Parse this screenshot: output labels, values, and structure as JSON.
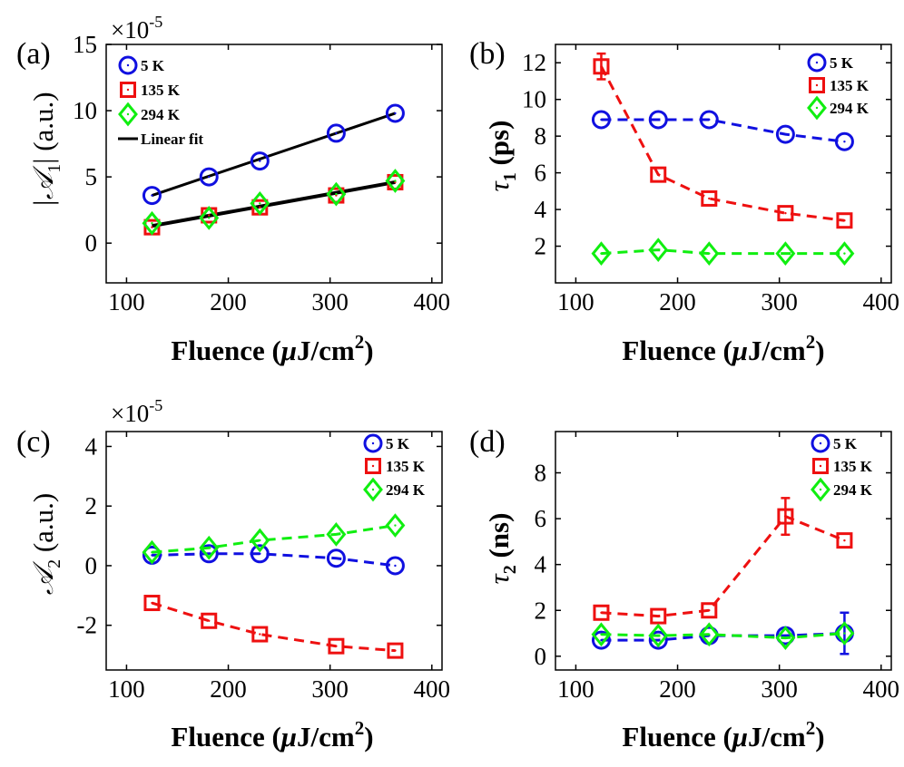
{
  "figure": {
    "x_label_main": "Fluence (",
    "x_label_mu": "μ",
    "x_label_unit": "J/cm",
    "x_label_sup": "2",
    "x_label_close": ")"
  },
  "colors": {
    "5K": "#1010e0",
    "135K": "#ee1010",
    "294K": "#10ee10",
    "fit": "#000000"
  },
  "chart_data": [
    {
      "id": "a",
      "type": "scatter",
      "panel_label": "(a)",
      "ylabel_main": "|𝒜",
      "ylabel_sub": "1",
      "ylabel_rest": "| (a.u.)",
      "multiplier": "×10",
      "multiplier_exp": "-5",
      "xlim": [
        80,
        410
      ],
      "ylim": [
        -3,
        15
      ],
      "xticks": [
        "100",
        "200",
        "300",
        "400"
      ],
      "xtick_values": [
        100,
        200,
        300,
        400
      ],
      "yticks": [
        "0",
        "5",
        "10",
        "15"
      ],
      "ytick_values": [
        0,
        5,
        10,
        15
      ],
      "legend": [
        "5 K",
        "135 K",
        "294 K",
        "Linear fit"
      ],
      "series": [
        {
          "name": "5 K",
          "marker": "circle",
          "x": [
            125,
            181,
            231,
            306,
            364
          ],
          "y": [
            3.6,
            5.0,
            6.2,
            8.3,
            9.8
          ]
        },
        {
          "name": "135 K",
          "marker": "square",
          "x": [
            125,
            181,
            231,
            306,
            364
          ],
          "y": [
            1.2,
            2.1,
            2.7,
            3.6,
            4.6
          ]
        },
        {
          "name": "294 K",
          "marker": "diamond",
          "x": [
            125,
            181,
            231,
            306,
            364
          ],
          "y": [
            1.5,
            1.9,
            3.0,
            3.7,
            4.7
          ]
        }
      ],
      "fits": [
        {
          "name": "Linear fit",
          "x": [
            125,
            364
          ],
          "y": [
            3.6,
            9.8
          ],
          "width": 3
        },
        {
          "name": "Linear fit",
          "x": [
            125,
            364
          ],
          "y": [
            1.3,
            4.6
          ],
          "width": 4
        }
      ]
    },
    {
      "id": "b",
      "type": "line",
      "panel_label": "(b)",
      "ylabel_main": "τ",
      "ylabel_sub": "1",
      "ylabel_rest": " (ps)",
      "xlim": [
        80,
        410
      ],
      "ylim": [
        0,
        13
      ],
      "xticks": [
        "100",
        "200",
        "300",
        "400"
      ],
      "xtick_values": [
        100,
        200,
        300,
        400
      ],
      "yticks": [
        "2",
        "4",
        "6",
        "8",
        "10",
        "12"
      ],
      "ytick_values": [
        2,
        4,
        6,
        8,
        10,
        12
      ],
      "legend": [
        "5 K",
        "135 K",
        "294 K"
      ],
      "series": [
        {
          "name": "5 K",
          "marker": "circle",
          "x": [
            125,
            181,
            231,
            306,
            364
          ],
          "y": [
            8.9,
            8.9,
            8.9,
            8.1,
            7.7
          ]
        },
        {
          "name": "135 K",
          "marker": "square",
          "x": [
            125,
            181,
            231,
            306,
            364
          ],
          "y": [
            11.8,
            5.9,
            4.6,
            3.8,
            3.4
          ],
          "err": [
            0.7,
            0,
            0,
            0,
            0
          ]
        },
        {
          "name": "294 K",
          "marker": "diamond",
          "x": [
            125,
            181,
            231,
            306,
            364
          ],
          "y": [
            1.6,
            1.8,
            1.6,
            1.6,
            1.6
          ]
        }
      ]
    },
    {
      "id": "c",
      "type": "line",
      "panel_label": "(c)",
      "ylabel_main": "𝒜",
      "ylabel_sub": "2",
      "ylabel_rest": " (a.u.)",
      "multiplier": "×10",
      "multiplier_exp": "-5",
      "xlim": [
        80,
        410
      ],
      "ylim": [
        -3.5,
        4.5
      ],
      "xticks": [
        "100",
        "200",
        "300",
        "400"
      ],
      "xtick_values": [
        100,
        200,
        300,
        400
      ],
      "yticks": [
        "-2",
        "0",
        "2",
        "4"
      ],
      "ytick_values": [
        -2,
        0,
        2,
        4
      ],
      "legend": [
        "5 K",
        "135 K",
        "294 K"
      ],
      "series": [
        {
          "name": "5 K",
          "marker": "circle",
          "x": [
            125,
            181,
            231,
            306,
            364
          ],
          "y": [
            0.35,
            0.4,
            0.4,
            0.25,
            0.0
          ]
        },
        {
          "name": "135 K",
          "marker": "square",
          "x": [
            125,
            181,
            231,
            306,
            364
          ],
          "y": [
            -1.25,
            -1.85,
            -2.3,
            -2.7,
            -2.85
          ]
        },
        {
          "name": "294 K",
          "marker": "diamond",
          "x": [
            125,
            181,
            231,
            306,
            364
          ],
          "y": [
            0.45,
            0.6,
            0.85,
            1.05,
            1.35
          ]
        }
      ]
    },
    {
      "id": "d",
      "type": "line",
      "panel_label": "(d)",
      "ylabel_main": "τ",
      "ylabel_sub": "2",
      "ylabel_rest": " (ns)",
      "xlim": [
        80,
        410
      ],
      "ylim": [
        -0.6,
        9.8
      ],
      "xticks": [
        "100",
        "200",
        "300",
        "400"
      ],
      "xtick_values": [
        100,
        200,
        300,
        400
      ],
      "yticks": [
        "0",
        "2",
        "4",
        "6",
        "8"
      ],
      "ytick_values": [
        0,
        2,
        4,
        6,
        8
      ],
      "legend": [
        "5 K",
        "135 K",
        "294 K"
      ],
      "series": [
        {
          "name": "5 K",
          "marker": "circle",
          "x": [
            125,
            181,
            231,
            306,
            364
          ],
          "y": [
            0.7,
            0.7,
            0.9,
            0.9,
            1.0
          ],
          "err": [
            0,
            0,
            0,
            0,
            0.9
          ]
        },
        {
          "name": "135 K",
          "marker": "square",
          "x": [
            125,
            181,
            231,
            306,
            364
          ],
          "y": [
            1.9,
            1.75,
            2.0,
            6.1,
            5.05
          ],
          "err": [
            0,
            0,
            0,
            0.8,
            0
          ]
        },
        {
          "name": "294 K",
          "marker": "diamond",
          "x": [
            125,
            181,
            231,
            306,
            364
          ],
          "y": [
            0.95,
            0.9,
            0.95,
            0.8,
            1.0
          ]
        }
      ]
    }
  ]
}
